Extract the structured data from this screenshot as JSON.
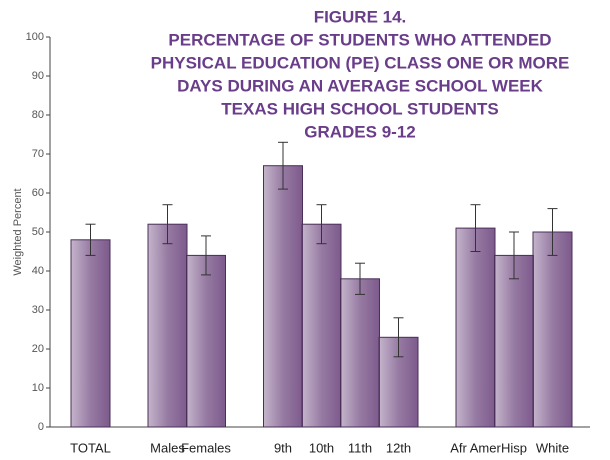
{
  "chart_data": {
    "type": "bar",
    "title": [
      "FIGURE 14.",
      "PERCENTAGE OF STUDENTS WHO ATTENDED",
      "PHYSICAL EDUCATION (PE) CLASS ONE OR MORE",
      "DAYS DURING AN AVERAGE SCHOOL WEEK",
      "TEXAS HIGH  SCHOOL STUDENTS",
      "GRADES 9-12"
    ],
    "y_label": "Weighted Percent",
    "categories": [
      "TOTAL",
      "Males",
      "Females",
      "9th",
      "10th",
      "11th",
      "12th",
      "Afr Amer",
      "Hisp",
      "White"
    ],
    "values": [
      48,
      52,
      44,
      67,
      52,
      38,
      23,
      51,
      44,
      50
    ],
    "errors": [
      4,
      5,
      5,
      6,
      5,
      4,
      5,
      6,
      6,
      6
    ],
    "color": "#7d5a8c",
    "ylim": [
      0,
      100
    ],
    "yticks": [
      0,
      10,
      20,
      30,
      40,
      50,
      60,
      70,
      80,
      90,
      100
    ]
  }
}
